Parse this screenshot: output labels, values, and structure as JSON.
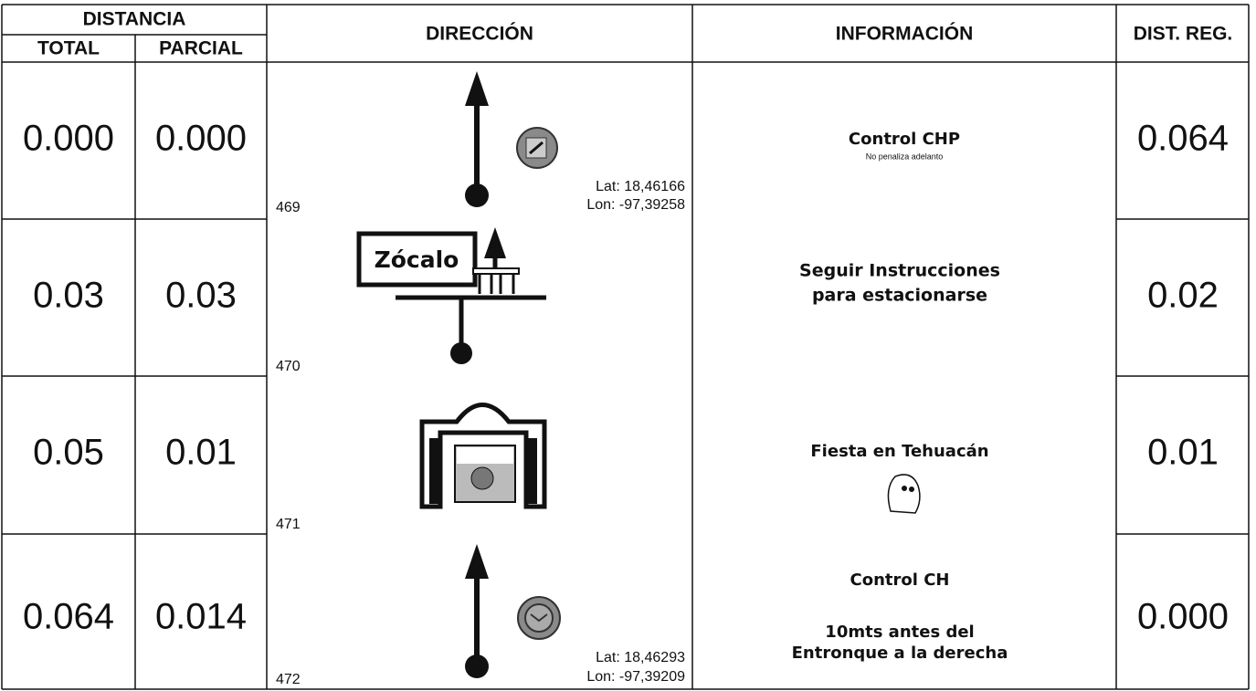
{
  "header": {
    "distancia": "DISTANCIA",
    "total": "TOTAL",
    "parcial": "PARCIAL",
    "direccion": "DIRECCIÓN",
    "informacion": "INFORMACIÓN",
    "dist_reg": "DIST. REG."
  },
  "rows": [
    {
      "total": "0.000",
      "parcial": "0.000",
      "number": "469",
      "lat": "Lat: 18,46166",
      "lon": "Lon: -97,39258",
      "info": [
        "Control CHP",
        "No penaliza adelanto"
      ],
      "dist_reg": "0.064"
    },
    {
      "total": "0.03",
      "parcial": "0.03",
      "number": "470",
      "sign": "Zócalo",
      "info": [
        "Seguir Instrucciones",
        "para estacionarse"
      ],
      "dist_reg": "0.02"
    },
    {
      "total": "0.05",
      "parcial": "0.01",
      "number": "471",
      "info": [
        "Fiesta en Tehuacán"
      ],
      "dist_reg": "0.01"
    },
    {
      "total": "0.064",
      "parcial": "0.014",
      "number": "472",
      "lat": "Lat: 18,46293",
      "lon": "Lon: -97,39209",
      "info": [
        "Control CH",
        "10mts antes del",
        "Entronque a la derecha"
      ],
      "dist_reg": "0.000"
    }
  ]
}
